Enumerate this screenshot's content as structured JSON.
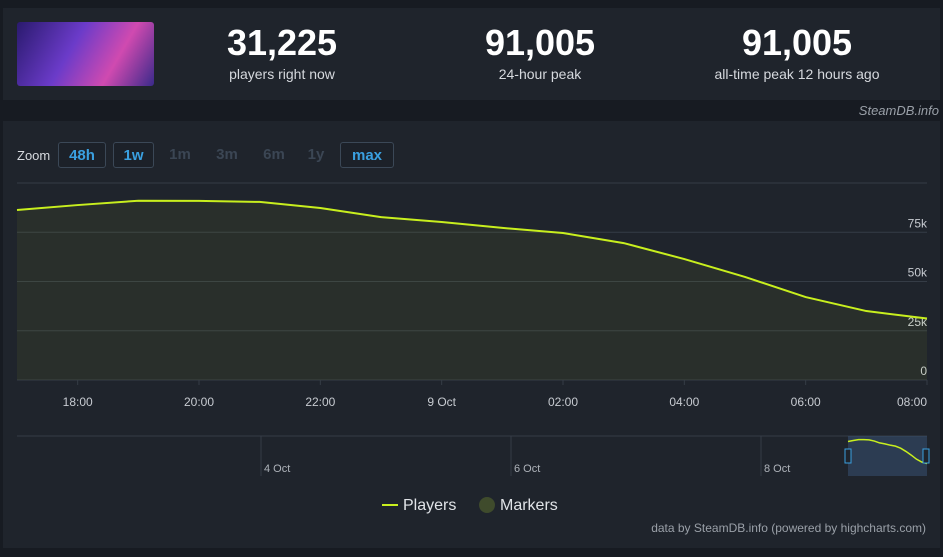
{
  "header": {
    "stats": [
      {
        "value": "31,225",
        "label": "players right now"
      },
      {
        "value": "91,005",
        "label": "24-hour peak"
      },
      {
        "value": "91,005",
        "label": "all-time peak 12 hours ago"
      }
    ],
    "site": "SteamDB.info"
  },
  "zoom": {
    "label": "Zoom",
    "buttons": [
      {
        "text": "48h",
        "active": true
      },
      {
        "text": "1w",
        "active": true
      },
      {
        "text": "1m",
        "active": false
      },
      {
        "text": "3m",
        "active": false
      },
      {
        "text": "6m",
        "active": false
      },
      {
        "text": "1y",
        "active": false
      },
      {
        "text": "max",
        "active": true
      }
    ]
  },
  "chart_data": {
    "type": "line",
    "x": [
      17,
      18,
      19,
      20,
      21,
      22,
      23,
      24,
      25,
      26,
      27,
      28,
      29,
      30,
      31,
      32
    ],
    "series": [
      {
        "name": "Players",
        "color": "#c8ef1e",
        "values": [
          86300,
          88800,
          91005,
          90900,
          90400,
          87300,
          82700,
          80200,
          77200,
          74600,
          69500,
          61400,
          52300,
          42100,
          35000,
          31225
        ]
      }
    ],
    "xlim": [
      17,
      32
    ],
    "xticks": [
      {
        "value": 18,
        "label": "18:00"
      },
      {
        "value": 20,
        "label": "20:00"
      },
      {
        "value": 22,
        "label": "22:00"
      },
      {
        "value": 24,
        "label": "9 Oct"
      },
      {
        "value": 26,
        "label": "02:00"
      },
      {
        "value": 28,
        "label": "04:00"
      },
      {
        "value": 30,
        "label": "06:00"
      },
      {
        "value": 32,
        "label": "08:00"
      }
    ],
    "ylim": [
      0,
      100000
    ],
    "yticks": [
      {
        "value": 0,
        "label": "0"
      },
      {
        "value": 25000,
        "label": "25k"
      },
      {
        "value": 50000,
        "label": "50k"
      },
      {
        "value": 75000,
        "label": "75k"
      }
    ],
    "grid": true,
    "legend_extra": {
      "name": "Markers",
      "color": "#3f4b2c"
    },
    "navigator_labels": [
      "4 Oct",
      "6 Oct",
      "8 Oct"
    ],
    "credit": "data by SteamDB.info (powered by highcharts.com)"
  }
}
